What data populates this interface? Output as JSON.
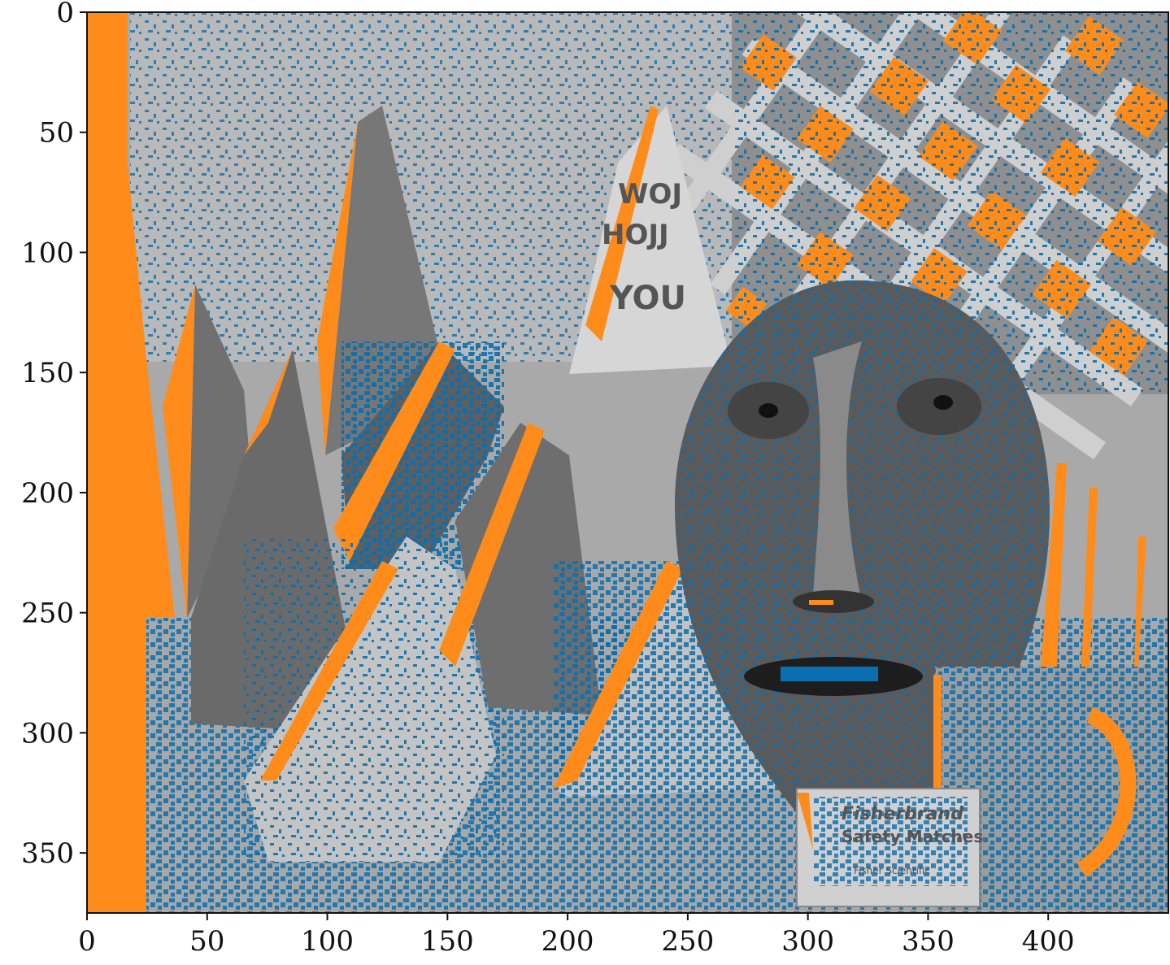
{
  "figure": {
    "image_width": 450,
    "image_height": 375,
    "x_ticks": [
      {
        "value": 0,
        "label": "0"
      },
      {
        "value": 50,
        "label": "50"
      },
      {
        "value": 100,
        "label": "100"
      },
      {
        "value": 150,
        "label": "150"
      },
      {
        "value": 200,
        "label": "200"
      },
      {
        "value": 250,
        "label": "250"
      },
      {
        "value": 300,
        "label": "300"
      },
      {
        "value": 350,
        "label": "350"
      },
      {
        "value": 400,
        "label": "400"
      }
    ],
    "y_ticks": [
      {
        "value": 0,
        "label": "0"
      },
      {
        "value": 50,
        "label": "50"
      },
      {
        "value": 100,
        "label": "100"
      },
      {
        "value": 150,
        "label": "150"
      },
      {
        "value": 200,
        "label": "200"
      },
      {
        "value": 250,
        "label": "250"
      },
      {
        "value": 300,
        "label": "300"
      },
      {
        "value": 350,
        "label": "350"
      }
    ],
    "colors": {
      "occlusion_orange": "#ff8c1a",
      "error_blue": "#0a6fb0",
      "gray_light": "#c8c8c8",
      "gray_mid": "#9a9a9a",
      "gray_dark": "#555555",
      "axis": "#111111"
    },
    "box_text": {
      "line1": "Fisherbrand",
      "line2": "Safety Matches",
      "line3": "Fisher Scientific"
    },
    "cone_text": {
      "line1": "WOJ",
      "line2": "HOJJ",
      "line3": "YOU"
    }
  }
}
